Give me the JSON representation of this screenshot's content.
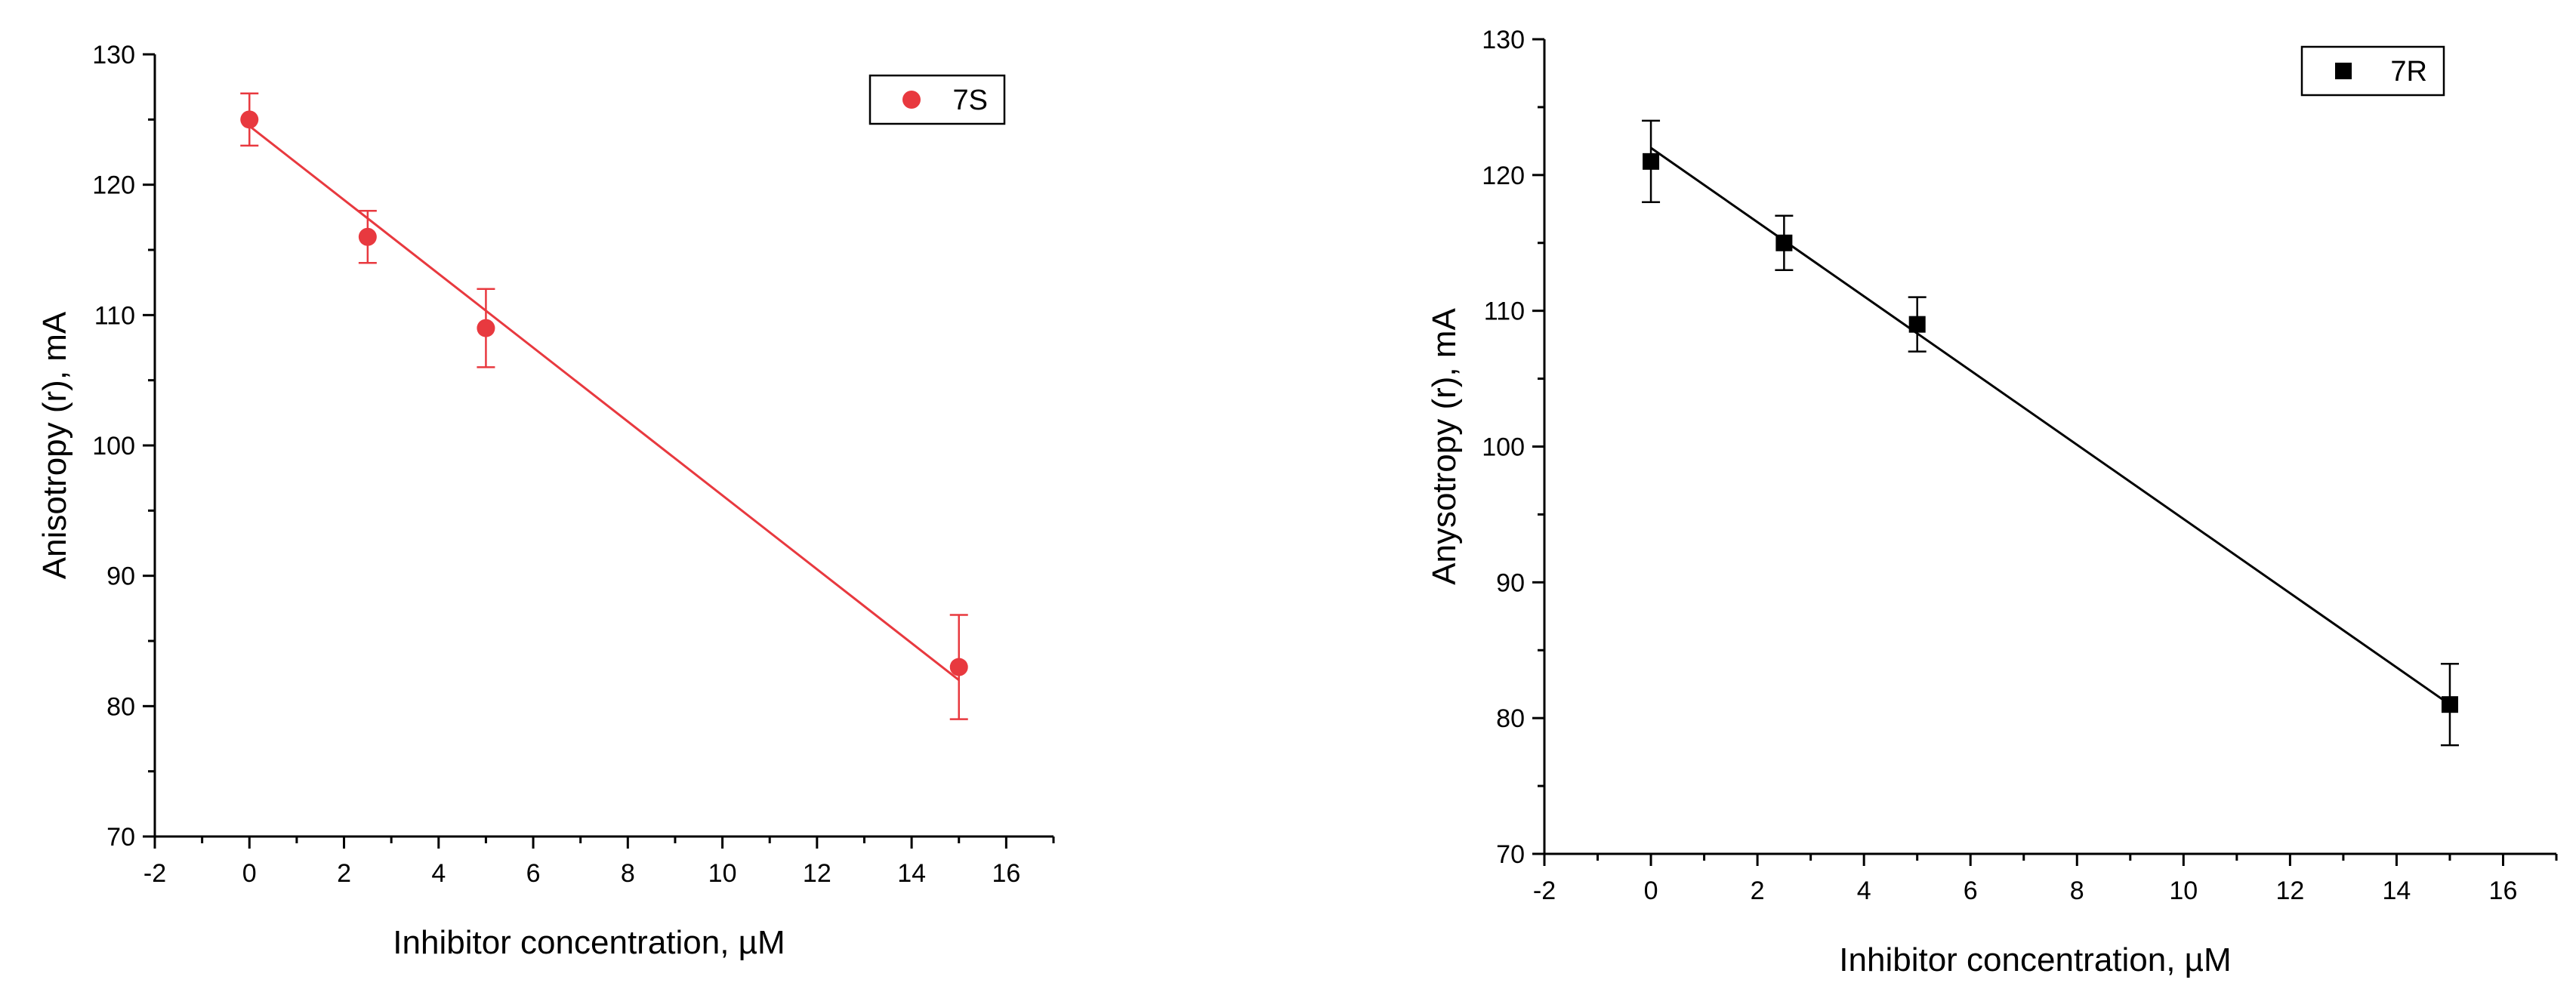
{
  "chart_data": [
    {
      "type": "scatter",
      "xlabel": "Inhibitor concentration, µM",
      "ylabel": "Anisotropy (r), mA",
      "xlim": [
        -2,
        17
      ],
      "ylim": [
        70,
        130
      ],
      "xticks": [
        -2,
        0,
        2,
        4,
        6,
        8,
        10,
        12,
        14,
        16
      ],
      "yticks": [
        70,
        80,
        90,
        100,
        110,
        120,
        130
      ],
      "legend_position": "top-right",
      "grid": false,
      "marker": "circle",
      "color": "#e8393f",
      "series": [
        {
          "name": "7S",
          "x": [
            0,
            2.5,
            5,
            15
          ],
          "y": [
            125,
            116,
            109,
            83
          ],
          "error": [
            2,
            2,
            3,
            4
          ]
        }
      ],
      "fit_line": {
        "x": [
          0,
          15
        ],
        "y": [
          124.5,
          82
        ]
      }
    },
    {
      "type": "scatter",
      "xlabel": "Inhibitor concentration, µM",
      "ylabel": "Anysotropy (r), mA",
      "xlim": [
        -2,
        17
      ],
      "ylim": [
        70,
        130
      ],
      "xticks": [
        -2,
        0,
        2,
        4,
        6,
        8,
        10,
        12,
        14,
        16
      ],
      "yticks": [
        70,
        80,
        90,
        100,
        110,
        120,
        130
      ],
      "legend_position": "top-right",
      "grid": false,
      "marker": "square",
      "color": "#000000",
      "series": [
        {
          "name": "7R",
          "x": [
            0,
            2.5,
            5,
            15
          ],
          "y": [
            121,
            115,
            109,
            81
          ],
          "error": [
            3,
            2,
            2,
            3
          ]
        }
      ],
      "fit_line": {
        "x": [
          0,
          15
        ],
        "y": [
          122,
          81
        ]
      }
    }
  ]
}
